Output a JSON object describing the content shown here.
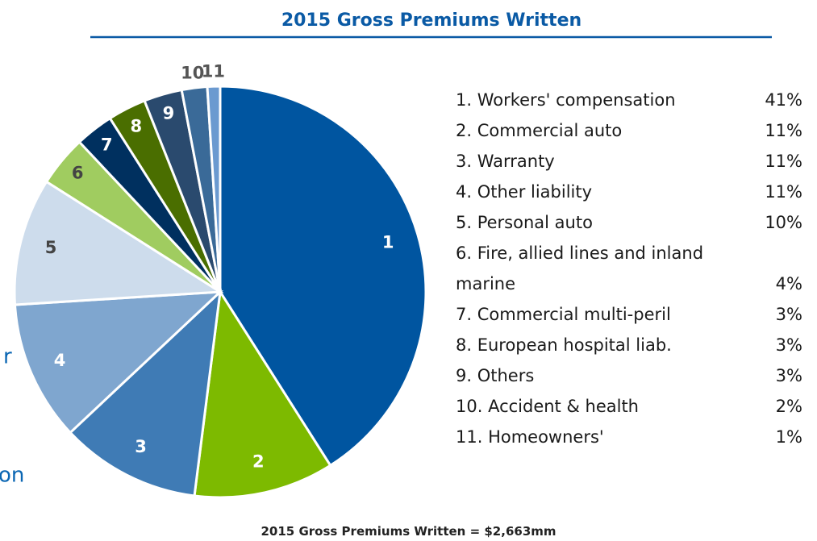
{
  "chart_data": {
    "type": "pie",
    "title": "2015 Gross Premiums Written",
    "categories": [
      "1. Workers' compensation",
      "2. Commercial auto",
      "3. Warranty",
      "4. Other liability",
      "5. Personal auto",
      "6. Fire, allied lines and inland marine",
      "7. Commercial multi-peril",
      "8. European hospital liab.",
      "9. Others",
      "10. Accident & health",
      "11. Homeowners'"
    ],
    "slice_labels": [
      "1",
      "2",
      "3",
      "4",
      "5",
      "6",
      "7",
      "8",
      "9",
      "10",
      "11"
    ],
    "values": [
      41,
      11,
      11,
      11,
      10,
      4,
      3,
      3,
      3,
      2,
      1
    ],
    "value_labels": [
      "41%",
      "11%",
      "11%",
      "11%",
      "10%",
      "4%",
      "3%",
      "3%",
      "3%",
      "2%",
      "1%"
    ],
    "colors": [
      "#0055a0",
      "#7dba00",
      "#3f7bb5",
      "#7fa6cf",
      "#cddcec",
      "#a0cc60",
      "#00305f",
      "#4a6e00",
      "#2a4a6e",
      "#3a6a98",
      "#6b9ad0"
    ],
    "label_colors": [
      "#ffffff",
      "#ffffff",
      "#ffffff",
      "#ffffff",
      "#444444",
      "#444444",
      "#ffffff",
      "#ffffff",
      "#ffffff",
      "#555555",
      "#555555"
    ],
    "footer": "2015 Gross Premiums Written = $2,663mm",
    "left_text_fragments": [
      "r",
      "on"
    ]
  }
}
